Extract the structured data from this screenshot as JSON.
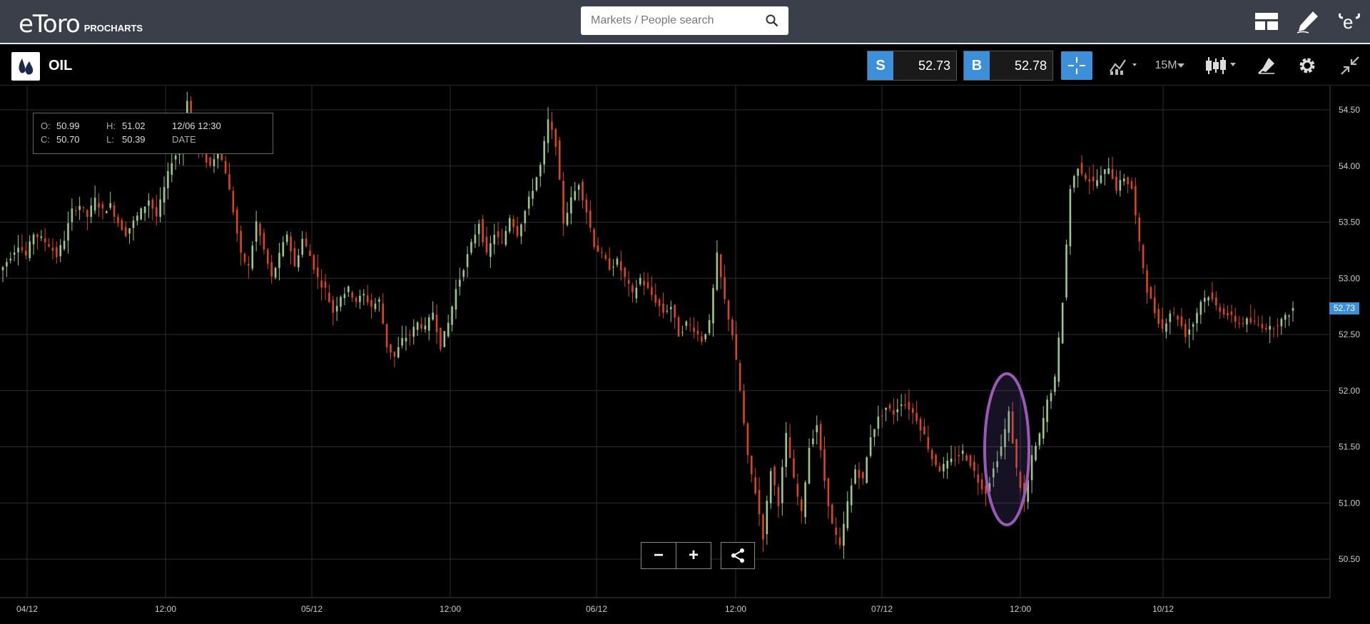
{
  "header": {
    "logo_text": "eToro",
    "logo_sub": "PROCHARTS",
    "search_placeholder": "Markets / People search",
    "icons": [
      "search-icon",
      "layout-icon",
      "pencil-icon",
      "etoro-bull-icon"
    ]
  },
  "toolbar": {
    "instrument": "OIL",
    "sell_tag": "S",
    "sell_price": "52.73",
    "buy_tag": "B",
    "buy_price": "52.78",
    "timeframe": "15M",
    "icons": [
      "crosshair-icon",
      "indicator-icon",
      "candle-type-icon",
      "drawing-icon",
      "gear-icon",
      "collapse-icon"
    ]
  },
  "ohlc": {
    "o_label": "O:",
    "o_value": "50.99",
    "h_label": "H:",
    "h_value": "51.02",
    "c_label": "C:",
    "c_value": "50.70",
    "l_label": "L:",
    "l_value": "50.39",
    "time": "12/06 12:30",
    "date_label": "DATE"
  },
  "chart_data": {
    "type": "candlestick",
    "title": "",
    "y_ticks": [
      "54.50",
      "54.00",
      "53.50",
      "53.00",
      "52.50",
      "52.00",
      "51.50",
      "51.00",
      "50.50"
    ],
    "y_tick_values": [
      54.5,
      54.0,
      53.5,
      53.0,
      52.5,
      52.0,
      51.5,
      51.0,
      50.5
    ],
    "ylim": [
      50.2,
      54.8
    ],
    "x_ticks": [
      "04/12",
      "12:00",
      "05/12",
      "12:00",
      "06/12",
      "12:00",
      "07/12",
      "12:00",
      "10/12"
    ],
    "current_price": "52.73",
    "up_color": "#9bc88a",
    "down_color": "#d9451e",
    "series_close": [
      53.1,
      53.2,
      53.3,
      53.2,
      53.4,
      53.35,
      53.3,
      53.2,
      53.35,
      53.6,
      53.65,
      53.55,
      53.7,
      53.6,
      53.65,
      53.5,
      53.4,
      53.5,
      53.6,
      53.7,
      53.55,
      53.8,
      54.05,
      54.15,
      54.6,
      54.2,
      54.1,
      54.0,
      54.15,
      53.95,
      53.6,
      53.2,
      53.1,
      53.5,
      53.25,
      53.0,
      53.2,
      53.4,
      53.1,
      53.35,
      53.2,
      53.0,
      52.9,
      52.7,
      52.85,
      52.9,
      52.8,
      52.85,
      52.75,
      52.8,
      52.4,
      52.3,
      52.45,
      52.5,
      52.6,
      52.55,
      52.7,
      52.4,
      52.6,
      52.9,
      53.1,
      53.3,
      53.5,
      53.2,
      53.4,
      53.3,
      53.55,
      53.4,
      53.6,
      53.8,
      54.0,
      54.4,
      54.2,
      53.5,
      53.7,
      53.85,
      53.6,
      53.3,
      53.2,
      53.1,
      53.15,
      53.0,
      52.85,
      53.0,
      52.9,
      52.8,
      52.7,
      52.75,
      52.5,
      52.6,
      52.55,
      52.45,
      52.6,
      53.2,
      52.8,
      52.5,
      52.0,
      51.4,
      51.1,
      50.7,
      51.3,
      51.0,
      51.6,
      51.2,
      50.9,
      51.5,
      51.7,
      51.2,
      50.8,
      50.6,
      51.0,
      51.3,
      51.2,
      51.6,
      51.75,
      51.85,
      51.8,
      51.9,
      51.85,
      51.75,
      51.6,
      51.4,
      51.3,
      51.35,
      51.4,
      51.45,
      51.35,
      51.2,
      51.1,
      51.3,
      51.5,
      51.8,
      51.3,
      51.0,
      51.4,
      51.6,
      51.9,
      52.1,
      52.8,
      53.8,
      54.0,
      53.9,
      53.85,
      53.9,
      54.0,
      53.8,
      53.9,
      53.8,
      53.3,
      52.9,
      52.7,
      52.55,
      52.7,
      52.65,
      52.5,
      52.6,
      52.8,
      52.85,
      52.75,
      52.7,
      52.65,
      52.6,
      52.62,
      52.6,
      52.58,
      52.55,
      52.6,
      52.65,
      52.73
    ]
  },
  "zoom": {
    "minus": "−",
    "plus": "+",
    "icons": [
      "zoom-out-icon",
      "zoom-in-icon",
      "share-icon"
    ]
  },
  "annotation": {
    "type": "ellipse",
    "color": "#9b59b6"
  }
}
